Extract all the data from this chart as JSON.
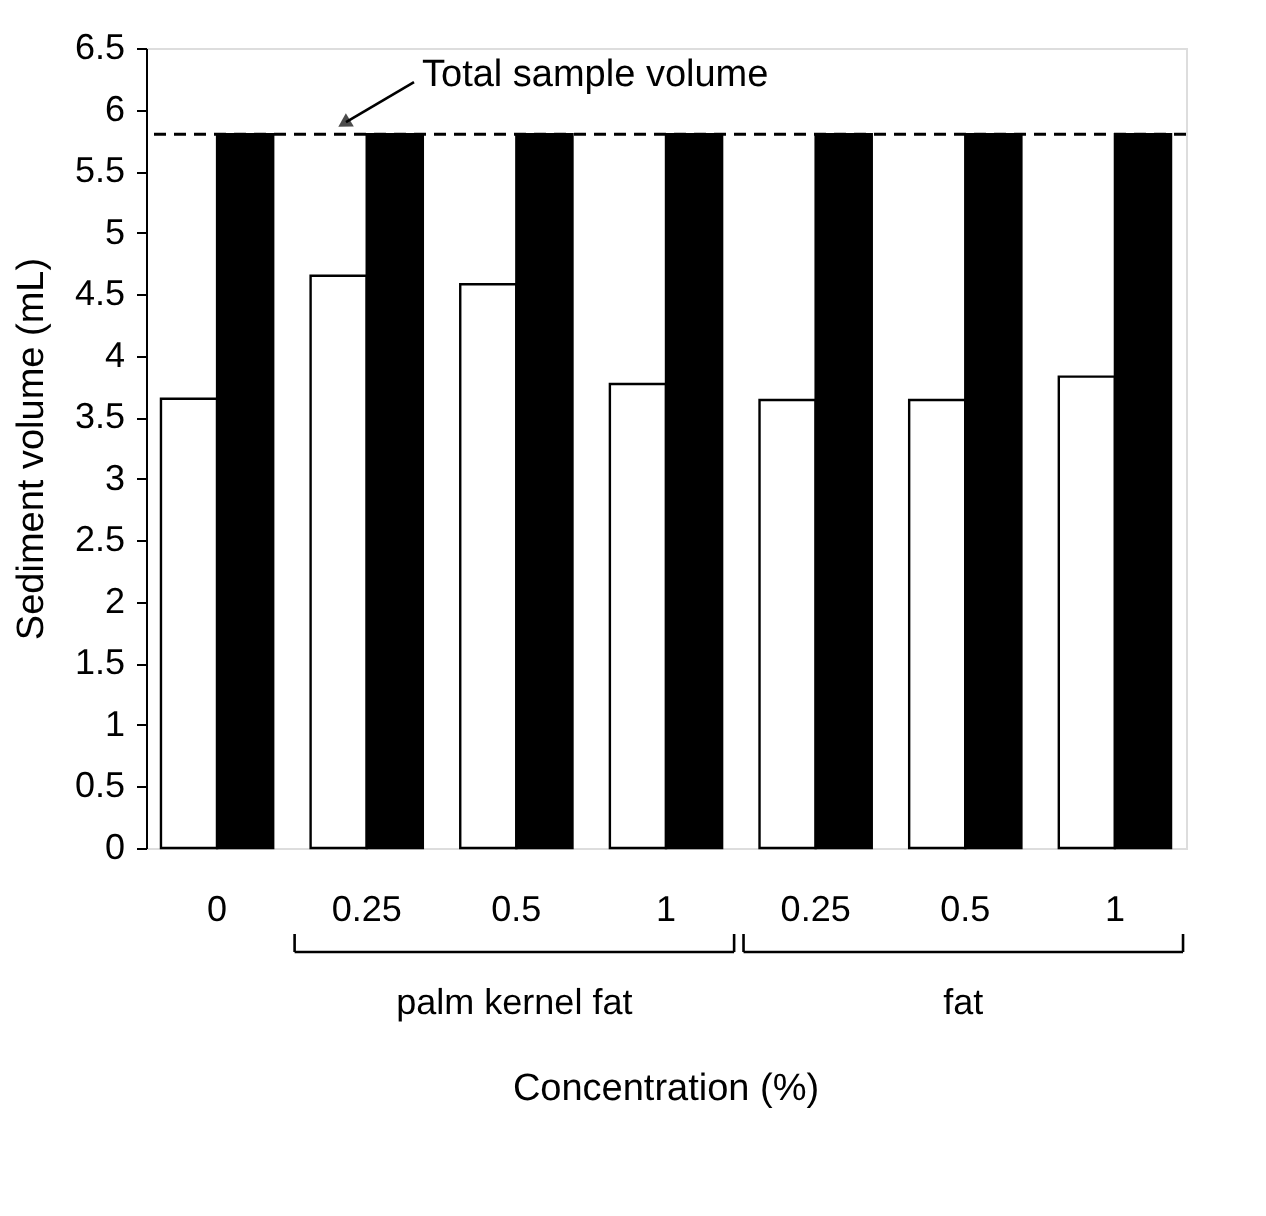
{
  "chart_data": {
    "type": "bar",
    "categories": [
      "0",
      "0.25",
      "0.5",
      "1",
      "0.25",
      "0.5",
      "1"
    ],
    "series": [
      {
        "color": "#ffffff",
        "values": [
          3.65,
          4.65,
          4.58,
          3.77,
          3.64,
          3.64,
          3.83
        ]
      },
      {
        "color": "#000000",
        "values": [
          5.8,
          5.8,
          5.8,
          5.8,
          5.8,
          5.8,
          5.8
        ]
      }
    ],
    "xlabel": "Concentration (%)",
    "ylabel": "Sediment volume (mL)",
    "ylim": [
      0,
      6.5
    ],
    "yticks": [
      0,
      0.5,
      1,
      1.5,
      2,
      2.5,
      3,
      3.5,
      4,
      4.5,
      5,
      5.5,
      6,
      6.5
    ],
    "ref_lines": [
      {
        "axis": "y",
        "value": 5.8,
        "label": "Total sample volume",
        "line_style": "dashed",
        "color": "#000000"
      }
    ],
    "annotations": [
      "palm kernel fat",
      "fat"
    ],
    "grid": false
  }
}
